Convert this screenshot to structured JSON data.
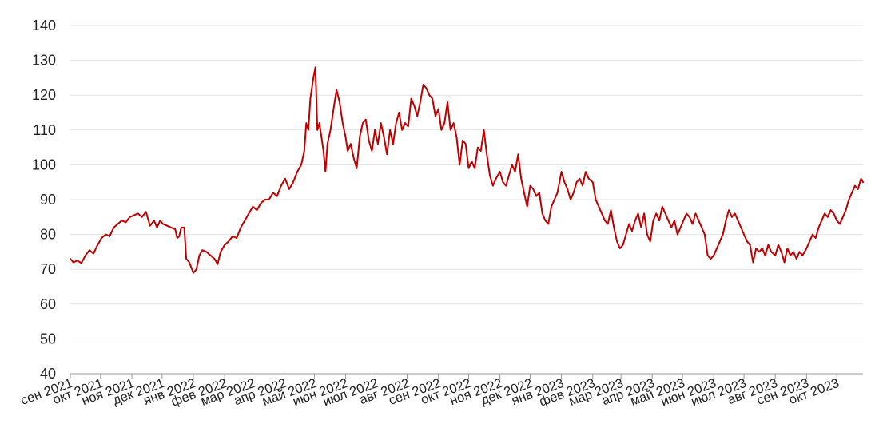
{
  "chart_data": {
    "type": "line",
    "title": "",
    "xlabel": "",
    "ylabel": "",
    "ylim": [
      40,
      140
    ],
    "yticks": [
      40,
      50,
      60,
      70,
      80,
      90,
      100,
      110,
      120,
      130,
      140
    ],
    "xticks": [
      {
        "label": "сен 2021",
        "date": "2021-09-01"
      },
      {
        "label": "окт 2021",
        "date": "2021-10-01"
      },
      {
        "label": "ноя 2021",
        "date": "2021-11-01"
      },
      {
        "label": "дек 2021",
        "date": "2021-12-01"
      },
      {
        "label": "янв 2022",
        "date": "2022-01-01"
      },
      {
        "label": "фев 2022",
        "date": "2022-02-01"
      },
      {
        "label": "мар 2022",
        "date": "2022-03-01"
      },
      {
        "label": "апр 2022",
        "date": "2022-04-01"
      },
      {
        "label": "май 2022",
        "date": "2022-05-01"
      },
      {
        "label": "июн 2022",
        "date": "2022-06-01"
      },
      {
        "label": "июл 2022",
        "date": "2022-07-01"
      },
      {
        "label": "авг 2022",
        "date": "2022-08-01"
      },
      {
        "label": "сен 2022",
        "date": "2022-09-01"
      },
      {
        "label": "окт 2022",
        "date": "2022-10-01"
      },
      {
        "label": "ноя 2022",
        "date": "2022-11-01"
      },
      {
        "label": "дек 2022",
        "date": "2022-12-01"
      },
      {
        "label": "янв 2023",
        "date": "2023-01-01"
      },
      {
        "label": "фев 2023",
        "date": "2023-02-01"
      },
      {
        "label": "мар 2023",
        "date": "2023-03-01"
      },
      {
        "label": "апр 2023",
        "date": "2023-04-01"
      },
      {
        "label": "май 2023",
        "date": "2023-05-01"
      },
      {
        "label": "июн 2023",
        "date": "2023-06-01"
      },
      {
        "label": "июл 2023",
        "date": "2023-07-01"
      },
      {
        "label": "авг 2023",
        "date": "2023-08-01"
      },
      {
        "label": "сен 2023",
        "date": "2023-09-01"
      },
      {
        "label": "окт 2023",
        "date": "2023-10-01"
      }
    ],
    "xlim": [
      "2021-09-01",
      "2023-10-27"
    ],
    "grid": true,
    "legend": "none",
    "series": [
      {
        "color": "#c00000",
        "points": [
          [
            "2021-09-01",
            73
          ],
          [
            "2021-09-04",
            72
          ],
          [
            "2021-09-08",
            72.5
          ],
          [
            "2021-09-12",
            71.8
          ],
          [
            "2021-09-16",
            74
          ],
          [
            "2021-09-20",
            75.5
          ],
          [
            "2021-09-24",
            74.5
          ],
          [
            "2021-09-28",
            77
          ],
          [
            "2021-10-02",
            79
          ],
          [
            "2021-10-06",
            80
          ],
          [
            "2021-10-10",
            79.5
          ],
          [
            "2021-10-14",
            82
          ],
          [
            "2021-10-18",
            83
          ],
          [
            "2021-10-22",
            84
          ],
          [
            "2021-10-26",
            83.5
          ],
          [
            "2021-10-30",
            85
          ],
          [
            "2021-11-03",
            85.5
          ],
          [
            "2021-11-07",
            86
          ],
          [
            "2021-11-11",
            85
          ],
          [
            "2021-11-15",
            86.5
          ],
          [
            "2021-11-19",
            82.5
          ],
          [
            "2021-11-23",
            84
          ],
          [
            "2021-11-26",
            82
          ],
          [
            "2021-11-29",
            84
          ],
          [
            "2021-12-02",
            83
          ],
          [
            "2021-12-06",
            82.5
          ],
          [
            "2021-12-10",
            82
          ],
          [
            "2021-12-14",
            81.5
          ],
          [
            "2021-12-16",
            79
          ],
          [
            "2021-12-18",
            79.5
          ],
          [
            "2021-12-20",
            82
          ],
          [
            "2021-12-23",
            82
          ],
          [
            "2021-12-25",
            73
          ],
          [
            "2021-12-28",
            72
          ],
          [
            "2022-01-01",
            69
          ],
          [
            "2022-01-04",
            70
          ],
          [
            "2022-01-07",
            74
          ],
          [
            "2022-01-10",
            75.5
          ],
          [
            "2022-01-14",
            75
          ],
          [
            "2022-01-18",
            74
          ],
          [
            "2022-01-22",
            73
          ],
          [
            "2022-01-25",
            71.5
          ],
          [
            "2022-01-28",
            75
          ],
          [
            "2022-02-01",
            77
          ],
          [
            "2022-02-05",
            78
          ],
          [
            "2022-02-09",
            79.5
          ],
          [
            "2022-02-13",
            79
          ],
          [
            "2022-02-17",
            82
          ],
          [
            "2022-02-21",
            84
          ],
          [
            "2022-02-25",
            86
          ],
          [
            "2022-03-01",
            88
          ],
          [
            "2022-03-05",
            87
          ],
          [
            "2022-03-09",
            89
          ],
          [
            "2022-03-13",
            90
          ],
          [
            "2022-03-17",
            90
          ],
          [
            "2022-03-21",
            92
          ],
          [
            "2022-03-25",
            91
          ],
          [
            "2022-03-29",
            94
          ],
          [
            "2022-04-02",
            96
          ],
          [
            "2022-04-06",
            93
          ],
          [
            "2022-04-10",
            95
          ],
          [
            "2022-04-14",
            98
          ],
          [
            "2022-04-18",
            100
          ],
          [
            "2022-04-21",
            104
          ],
          [
            "2022-04-23",
            112
          ],
          [
            "2022-04-25",
            110
          ],
          [
            "2022-04-27",
            119
          ],
          [
            "2022-04-30",
            125
          ],
          [
            "2022-05-02",
            128
          ],
          [
            "2022-05-04",
            110
          ],
          [
            "2022-05-06",
            112
          ],
          [
            "2022-05-08",
            108
          ],
          [
            "2022-05-10",
            104
          ],
          [
            "2022-05-12",
            98
          ],
          [
            "2022-05-14",
            106
          ],
          [
            "2022-05-17",
            110
          ],
          [
            "2022-05-20",
            116
          ],
          [
            "2022-05-23",
            121.5
          ],
          [
            "2022-05-26",
            118
          ],
          [
            "2022-05-29",
            112
          ],
          [
            "2022-06-01",
            108
          ],
          [
            "2022-06-03",
            104
          ],
          [
            "2022-06-06",
            106
          ],
          [
            "2022-06-09",
            102
          ],
          [
            "2022-06-12",
            99
          ],
          [
            "2022-06-15",
            108
          ],
          [
            "2022-06-18",
            112
          ],
          [
            "2022-06-21",
            113
          ],
          [
            "2022-06-24",
            107
          ],
          [
            "2022-06-27",
            104
          ],
          [
            "2022-06-30",
            110
          ],
          [
            "2022-07-03",
            106
          ],
          [
            "2022-07-06",
            112
          ],
          [
            "2022-07-09",
            108
          ],
          [
            "2022-07-12",
            103
          ],
          [
            "2022-07-15",
            110
          ],
          [
            "2022-07-18",
            106
          ],
          [
            "2022-07-21",
            112
          ],
          [
            "2022-07-24",
            115
          ],
          [
            "2022-07-27",
            110
          ],
          [
            "2022-07-30",
            112
          ],
          [
            "2022-08-02",
            111
          ],
          [
            "2022-08-05",
            119
          ],
          [
            "2022-08-08",
            117
          ],
          [
            "2022-08-11",
            114
          ],
          [
            "2022-08-14",
            118
          ],
          [
            "2022-08-17",
            123
          ],
          [
            "2022-08-20",
            122
          ],
          [
            "2022-08-23",
            120
          ],
          [
            "2022-08-26",
            119
          ],
          [
            "2022-08-29",
            114
          ],
          [
            "2022-09-01",
            116
          ],
          [
            "2022-09-04",
            110
          ],
          [
            "2022-09-07",
            112
          ],
          [
            "2022-09-10",
            118
          ],
          [
            "2022-09-13",
            110
          ],
          [
            "2022-09-16",
            112
          ],
          [
            "2022-09-19",
            108
          ],
          [
            "2022-09-22",
            100
          ],
          [
            "2022-09-25",
            107
          ],
          [
            "2022-09-28",
            106
          ],
          [
            "2022-10-01",
            99
          ],
          [
            "2022-10-04",
            101
          ],
          [
            "2022-10-07",
            99
          ],
          [
            "2022-10-10",
            105
          ],
          [
            "2022-10-13",
            104
          ],
          [
            "2022-10-16",
            110
          ],
          [
            "2022-10-19",
            103
          ],
          [
            "2022-10-22",
            97
          ],
          [
            "2022-10-25",
            94
          ],
          [
            "2022-10-28",
            96
          ],
          [
            "2022-11-01",
            98
          ],
          [
            "2022-11-04",
            95
          ],
          [
            "2022-11-07",
            94
          ],
          [
            "2022-11-10",
            97
          ],
          [
            "2022-11-13",
            100
          ],
          [
            "2022-11-16",
            98
          ],
          [
            "2022-11-19",
            103
          ],
          [
            "2022-11-22",
            96
          ],
          [
            "2022-11-25",
            92
          ],
          [
            "2022-11-28",
            88
          ],
          [
            "2022-12-01",
            94
          ],
          [
            "2022-12-04",
            93
          ],
          [
            "2022-12-07",
            91
          ],
          [
            "2022-12-10",
            92
          ],
          [
            "2022-12-13",
            86
          ],
          [
            "2022-12-16",
            84
          ],
          [
            "2022-12-19",
            83
          ],
          [
            "2022-12-22",
            88
          ],
          [
            "2022-12-25",
            90
          ],
          [
            "2022-12-28",
            92
          ],
          [
            "2023-01-01",
            98
          ],
          [
            "2023-01-04",
            95
          ],
          [
            "2023-01-07",
            93
          ],
          [
            "2023-01-10",
            90
          ],
          [
            "2023-01-13",
            92
          ],
          [
            "2023-01-16",
            95
          ],
          [
            "2023-01-19",
            96
          ],
          [
            "2023-01-22",
            94
          ],
          [
            "2023-01-25",
            98
          ],
          [
            "2023-01-28",
            96
          ],
          [
            "2023-02-01",
            95
          ],
          [
            "2023-02-04",
            90
          ],
          [
            "2023-02-07",
            88
          ],
          [
            "2023-02-10",
            86
          ],
          [
            "2023-02-13",
            84
          ],
          [
            "2023-02-16",
            83
          ],
          [
            "2023-02-19",
            87
          ],
          [
            "2023-02-22",
            82
          ],
          [
            "2023-02-25",
            78
          ],
          [
            "2023-02-28",
            76
          ],
          [
            "2023-03-03",
            77
          ],
          [
            "2023-03-06",
            80
          ],
          [
            "2023-03-09",
            83
          ],
          [
            "2023-03-12",
            81
          ],
          [
            "2023-03-15",
            84
          ],
          [
            "2023-03-18",
            86
          ],
          [
            "2023-03-21",
            82
          ],
          [
            "2023-03-24",
            86
          ],
          [
            "2023-03-27",
            80
          ],
          [
            "2023-03-30",
            78
          ],
          [
            "2023-04-02",
            84
          ],
          [
            "2023-04-05",
            86
          ],
          [
            "2023-04-08",
            84
          ],
          [
            "2023-04-11",
            88
          ],
          [
            "2023-04-14",
            86
          ],
          [
            "2023-04-17",
            84
          ],
          [
            "2023-04-20",
            82
          ],
          [
            "2023-04-23",
            84
          ],
          [
            "2023-04-26",
            80
          ],
          [
            "2023-04-29",
            82
          ],
          [
            "2023-05-02",
            84
          ],
          [
            "2023-05-05",
            86
          ],
          [
            "2023-05-08",
            85
          ],
          [
            "2023-05-11",
            83
          ],
          [
            "2023-05-14",
            86
          ],
          [
            "2023-05-17",
            84
          ],
          [
            "2023-05-20",
            82
          ],
          [
            "2023-05-23",
            80
          ],
          [
            "2023-05-26",
            74
          ],
          [
            "2023-05-29",
            73
          ],
          [
            "2023-06-01",
            74
          ],
          [
            "2023-06-04",
            76
          ],
          [
            "2023-06-07",
            78
          ],
          [
            "2023-06-10",
            80
          ],
          [
            "2023-06-13",
            84
          ],
          [
            "2023-06-16",
            87
          ],
          [
            "2023-06-19",
            85
          ],
          [
            "2023-06-22",
            86
          ],
          [
            "2023-06-25",
            84
          ],
          [
            "2023-06-28",
            82
          ],
          [
            "2023-07-01",
            80
          ],
          [
            "2023-07-04",
            78
          ],
          [
            "2023-07-07",
            77
          ],
          [
            "2023-07-10",
            72
          ],
          [
            "2023-07-13",
            76
          ],
          [
            "2023-07-16",
            75
          ],
          [
            "2023-07-19",
            76
          ],
          [
            "2023-07-22",
            74
          ],
          [
            "2023-07-25",
            77
          ],
          [
            "2023-07-28",
            75
          ],
          [
            "2023-08-01",
            74
          ],
          [
            "2023-08-04",
            77
          ],
          [
            "2023-08-07",
            75
          ],
          [
            "2023-08-10",
            72
          ],
          [
            "2023-08-13",
            76
          ],
          [
            "2023-08-16",
            74
          ],
          [
            "2023-08-19",
            75
          ],
          [
            "2023-08-22",
            73
          ],
          [
            "2023-08-25",
            75
          ],
          [
            "2023-08-28",
            74
          ],
          [
            "2023-09-01",
            76
          ],
          [
            "2023-09-04",
            78
          ],
          [
            "2023-09-07",
            80
          ],
          [
            "2023-09-10",
            79
          ],
          [
            "2023-09-13",
            82
          ],
          [
            "2023-09-16",
            84
          ],
          [
            "2023-09-19",
            86
          ],
          [
            "2023-09-22",
            85
          ],
          [
            "2023-09-25",
            87
          ],
          [
            "2023-09-28",
            86
          ],
          [
            "2023-10-01",
            84
          ],
          [
            "2023-10-04",
            83
          ],
          [
            "2023-10-07",
            85
          ],
          [
            "2023-10-10",
            87
          ],
          [
            "2023-10-13",
            90
          ],
          [
            "2023-10-16",
            92
          ],
          [
            "2023-10-19",
            94
          ],
          [
            "2023-10-22",
            93
          ],
          [
            "2023-10-25",
            96
          ],
          [
            "2023-10-27",
            95
          ]
        ]
      }
    ]
  }
}
